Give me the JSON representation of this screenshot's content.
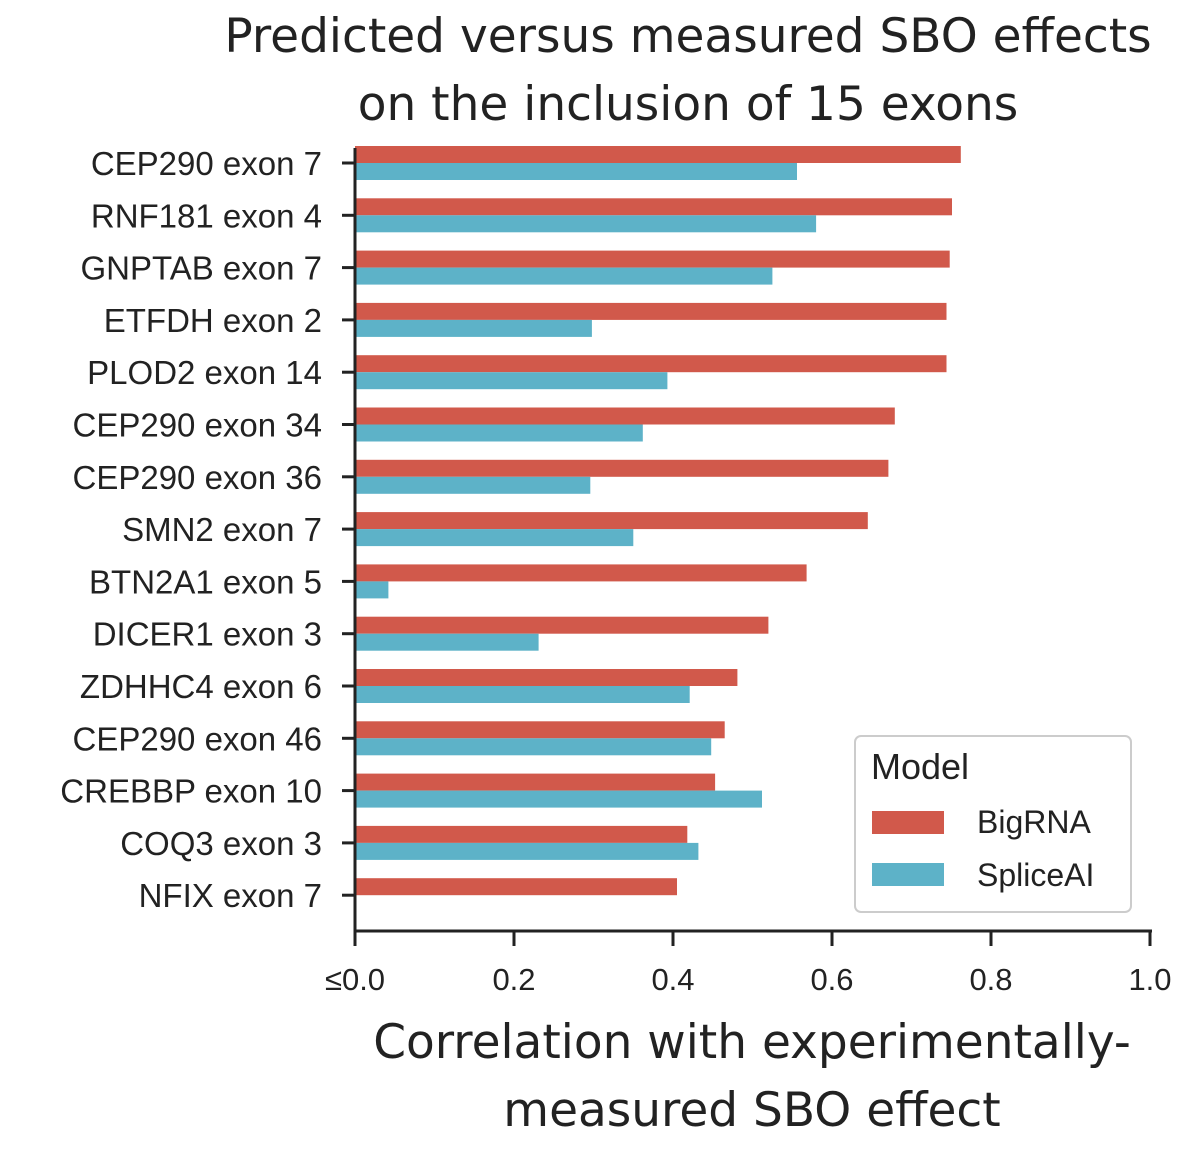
{
  "chart_data": {
    "type": "bar",
    "orientation": "horizontal",
    "title": [
      "Predicted versus measured SBO effects",
      "on the inclusion of 15 exons"
    ],
    "xlabel": [
      "Correlation with experimentally-",
      "measured SBO effect"
    ],
    "ylabel": "",
    "xlim": [
      0.0,
      1.0
    ],
    "xticks": [
      0.0,
      0.2,
      0.4,
      0.6,
      0.8,
      1.0
    ],
    "xtick_labels": [
      "≤0.0",
      "0.2",
      "0.4",
      "0.6",
      "0.8",
      "1.0"
    ],
    "categories": [
      "CEP290 exon 7",
      "RNF181 exon 4",
      "GNPTAB exon 7",
      "ETFDH exon 2",
      "PLOD2 exon 14",
      "CEP290 exon 34",
      "CEP290 exon 36",
      "SMN2 exon 7",
      "BTN2A1 exon 5",
      "DICER1 exon 3",
      "ZDHHC4 exon 6",
      "CEP290 exon 46",
      "CREBBP exon 10",
      "COQ3 exon 3",
      "NFIX exon 7"
    ],
    "series": [
      {
        "name": "BigRNA",
        "color": "#d1594b",
        "values": [
          0.762,
          0.751,
          0.748,
          0.744,
          0.744,
          0.679,
          0.671,
          0.645,
          0.568,
          0.52,
          0.481,
          0.465,
          0.453,
          0.418,
          0.405
        ]
      },
      {
        "name": "SpliceAI",
        "color": "#5db2c8",
        "values": [
          0.556,
          0.58,
          0.525,
          0.298,
          0.393,
          0.362,
          0.296,
          0.35,
          0.042,
          0.231,
          0.421,
          0.448,
          0.512,
          0.432,
          0.0
        ]
      }
    ],
    "legend": {
      "title": "Model",
      "position": "lower-right"
    },
    "grid": false
  }
}
